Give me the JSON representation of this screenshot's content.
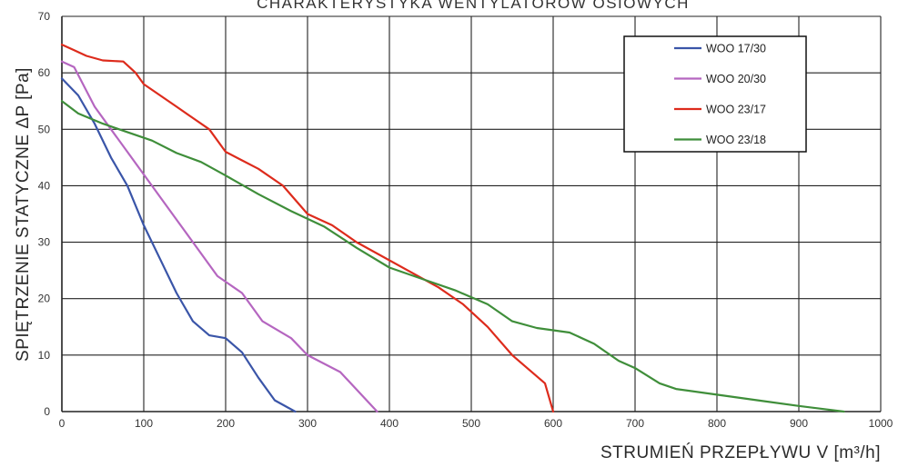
{
  "chart_data": {
    "type": "line",
    "title": "CHARAKTERYSTYKA WENTYLATORÓW OSIOWYCH",
    "xlabel": "STRUMIEŃ PRZEPŁYWU V [m³/h]",
    "ylabel": "SPIĘTRZENIE STATYCZNE ΔP [Pa]",
    "xlim": [
      0,
      1000
    ],
    "ylim": [
      0,
      70
    ],
    "xticks": [
      0,
      100,
      200,
      300,
      400,
      500,
      600,
      700,
      800,
      900,
      1000
    ],
    "yticks": [
      0,
      10,
      20,
      30,
      40,
      50,
      60,
      70
    ],
    "grid": true,
    "legend_position": "top-right",
    "series": [
      {
        "name": "WOO 17/30",
        "color": "#3a55a8",
        "x": [
          0,
          20,
          40,
          60,
          80,
          100,
          120,
          140,
          160,
          180,
          200,
          220,
          240,
          260,
          285
        ],
        "y": [
          59,
          56,
          51,
          45,
          40,
          33,
          27,
          21,
          16,
          13.5,
          13,
          10.5,
          6,
          2,
          0
        ]
      },
      {
        "name": "WOO 20/30",
        "color": "#b566c0",
        "x": [
          0,
          15,
          40,
          60,
          80,
          100,
          120,
          150,
          190,
          220,
          245,
          280,
          300,
          340,
          385
        ],
        "y": [
          62,
          61,
          54,
          50,
          46,
          42,
          38,
          32,
          24,
          21,
          16,
          13,
          10,
          7,
          0
        ]
      },
      {
        "name": "WOO 23/17",
        "color": "#dd2b1c",
        "x": [
          0,
          15,
          30,
          50,
          75,
          90,
          100,
          120,
          140,
          160,
          180,
          200,
          220,
          240,
          270,
          300,
          330,
          360,
          460,
          490,
          520,
          550,
          570,
          590,
          600
        ],
        "y": [
          65,
          64,
          63,
          62.2,
          62,
          60,
          58,
          56,
          54,
          52,
          50,
          46,
          44.5,
          43,
          40,
          35,
          33,
          30,
          22,
          19,
          15,
          10,
          7.5,
          5,
          0
        ]
      },
      {
        "name": "WOO 23/18",
        "color": "#3f8e3a",
        "x": [
          0,
          20,
          50,
          80,
          110,
          140,
          170,
          200,
          240,
          280,
          320,
          360,
          400,
          440,
          480,
          520,
          550,
          580,
          620,
          650,
          680,
          700,
          730,
          750,
          800,
          850,
          900,
          955
        ],
        "y": [
          55,
          52.8,
          51,
          49.5,
          48,
          45.8,
          44.2,
          41.8,
          38.5,
          35.5,
          32.8,
          29,
          25.5,
          23.5,
          21.5,
          19,
          16,
          14.8,
          14,
          12,
          9,
          7.7,
          5,
          4,
          3,
          2,
          1,
          0
        ]
      }
    ]
  }
}
